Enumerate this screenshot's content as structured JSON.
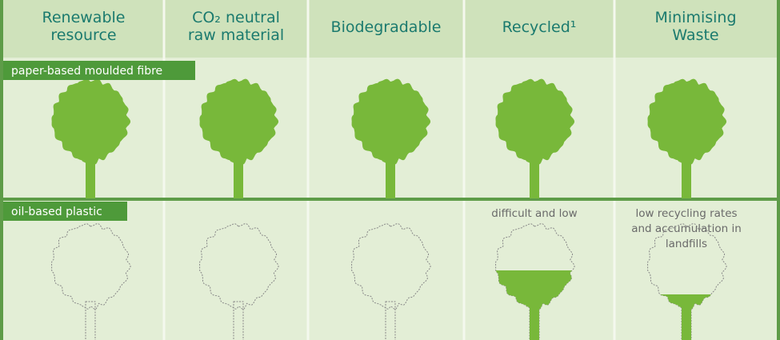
{
  "headers": [
    [
      "Renewable",
      "resource"
    ],
    [
      "CO₂ neutral",
      "raw material"
    ],
    [
      "Biodegradable"
    ],
    [
      "Recycled¹"
    ],
    [
      "Minimising",
      "Waste"
    ]
  ],
  "rows": [
    {
      "label": "paper-based moulded fibre",
      "notes": [
        null,
        null,
        null,
        null,
        null
      ]
    },
    {
      "label": "oil-based plastic",
      "notes": [
        null,
        null,
        null,
        [
          "difficult and low"
        ],
        [
          "low recycling rates",
          "and accumulation in",
          "landfills"
        ]
      ]
    }
  ]
}
